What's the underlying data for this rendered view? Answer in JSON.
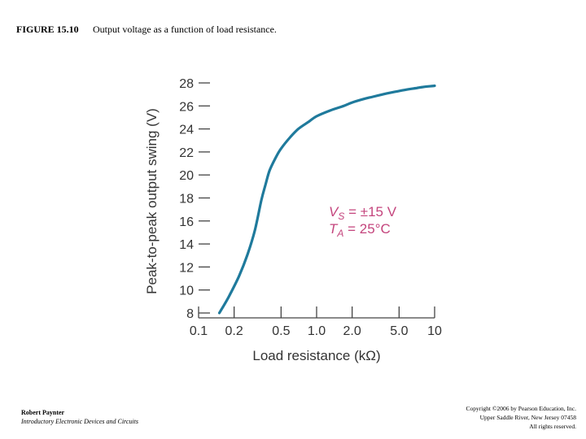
{
  "figure": {
    "number": "FIGURE 15.10",
    "caption": "Output voltage as a function of load resistance."
  },
  "chart_data": {
    "type": "line",
    "title": "",
    "xlabel": "Load resistance (kΩ)",
    "ylabel": "Peak-to-peak output swing (V)",
    "x_scale": "log",
    "xlim": [
      0.1,
      10
    ],
    "ylim": [
      8,
      28
    ],
    "x_ticks": [
      0.1,
      0.2,
      0.5,
      1.0,
      2.0,
      5.0,
      10
    ],
    "x_tick_labels": [
      "0.1",
      "0.2",
      "0.5",
      "1.0",
      "2.0",
      "5.0",
      "10"
    ],
    "y_ticks": [
      8,
      10,
      12,
      14,
      16,
      18,
      20,
      22,
      24,
      26,
      28
    ],
    "y_tick_labels": [
      "8",
      "10",
      "12",
      "14",
      "16",
      "18",
      "20",
      "22",
      "24",
      "26",
      "28"
    ],
    "grid": false,
    "line_color": "#1f7a9c",
    "annotation_color": "#c4457d",
    "annotations": [
      {
        "base": "V",
        "sub": "S",
        "text": " = ±15 V"
      },
      {
        "base": "T",
        "sub": "A",
        "text": " = 25°C"
      }
    ],
    "series": [
      {
        "x": [
          0.15,
          0.18,
          0.22,
          0.26,
          0.3,
          0.34,
          0.37,
          0.4,
          0.45,
          0.5,
          0.6,
          0.7,
          0.85,
          1.0,
          1.3,
          1.7,
          2.0,
          2.5,
          3.0,
          4.0,
          5.0,
          6.0,
          7.0,
          8.0,
          10.0
        ],
        "y": [
          8.0,
          9.4,
          11.2,
          13.1,
          15.2,
          17.8,
          19.2,
          20.4,
          21.5,
          22.3,
          23.3,
          24.0,
          24.6,
          25.1,
          25.6,
          26.0,
          26.3,
          26.6,
          26.8,
          27.1,
          27.3,
          27.45,
          27.55,
          27.65,
          27.75
        ]
      }
    ]
  },
  "footer": {
    "author": "Robert Paynter",
    "book": "Introductory Electronic Devices and Circuits",
    "copyright_lines": [
      "Copyright ©2006 by Pearson Education, Inc.",
      "Upper Saddle River, New Jersey 07458",
      "All rights reserved."
    ]
  }
}
